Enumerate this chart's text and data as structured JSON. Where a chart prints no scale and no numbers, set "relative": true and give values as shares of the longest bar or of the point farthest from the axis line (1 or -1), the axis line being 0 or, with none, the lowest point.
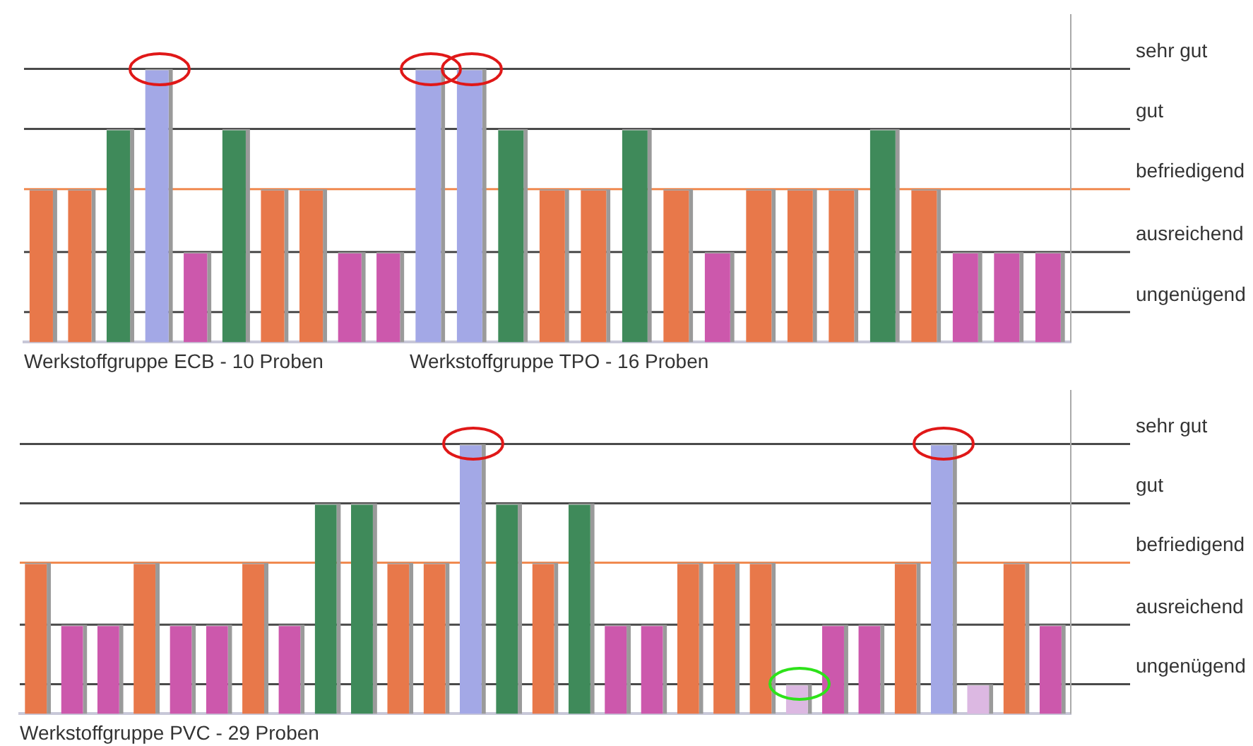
{
  "chart_data": [
    {
      "type": "bar",
      "xlabel": "Werkstoffgruppe ECB - 10 Proben",
      "categories": [
        null,
        null,
        null,
        null,
        null,
        null,
        null,
        null,
        null,
        null
      ],
      "relative": true,
      "values": [
        0.56,
        0.56,
        0.78,
        1,
        0.33,
        0.78,
        0.56,
        0.56,
        0.33,
        0.33
      ],
      "colors": [
        "#e8784a",
        "#e8784a",
        "#3f8a5a",
        "#a3a8e6",
        "#cc58ac",
        "#3f8a5a",
        "#e8784a",
        "#e8784a",
        "#cc58ac",
        "#cc58ac"
      ],
      "legend": false,
      "ref_lines": [
        {
          "axis": "y",
          "value": 0.11,
          "color": "#4a4a4a"
        },
        {
          "axis": "y",
          "value": 0.33,
          "color": "#4a4a4a"
        },
        {
          "axis": "y",
          "value": 0.56,
          "color": "#f08a50"
        },
        {
          "axis": "y",
          "value": 0.78,
          "color": "#4a4a4a"
        },
        {
          "axis": "y",
          "value": 1,
          "color": "#4a4a4a"
        }
      ]
    },
    {
      "type": "bar",
      "xlabel": "Werkstoffgruppe TPO - 16 Proben",
      "categories": [
        null,
        null,
        null,
        null,
        null,
        null,
        null,
        null,
        null,
        null,
        null,
        null,
        null,
        null,
        null,
        null
      ],
      "relative": true,
      "values": [
        1,
        1,
        0.78,
        0.56,
        0.56,
        0.78,
        0.56,
        0.33,
        0.56,
        0.56,
        0.56,
        0.78,
        0.56,
        0.33,
        0.33,
        0.33
      ],
      "colors": [
        "#a3a8e6",
        "#a3a8e6",
        "#3f8a5a",
        "#e8784a",
        "#e8784a",
        "#3f8a5a",
        "#e8784a",
        "#cc58ac",
        "#e8784a",
        "#e8784a",
        "#e8784a",
        "#3f8a5a",
        "#e8784a",
        "#cc58ac",
        "#cc58ac",
        "#cc58ac"
      ],
      "legend": false,
      "ref_lines": [
        {
          "axis": "y",
          "value": 0.11,
          "label": "ungenügend",
          "color": "#4a4a4a"
        },
        {
          "axis": "y",
          "value": 0.33,
          "label": "ausreichend",
          "color": "#4a4a4a"
        },
        {
          "axis": "y",
          "value": 0.56,
          "label": "befriedigend",
          "color": "#f08a50"
        },
        {
          "axis": "y",
          "value": 0.78,
          "label": "gut",
          "color": "#4a4a4a"
        },
        {
          "axis": "y",
          "value": 1,
          "label": "sehr gut",
          "color": "#4a4a4a"
        }
      ]
    },
    {
      "type": "bar",
      "xlabel": "Werkstoffgruppe PVC - 29 Proben",
      "categories": [
        null,
        null,
        null,
        null,
        null,
        null,
        null,
        null,
        null,
        null,
        null,
        null,
        null,
        null,
        null,
        null,
        null,
        null,
        null,
        null,
        null,
        null,
        null,
        null,
        null,
        null,
        null,
        null,
        null
      ],
      "relative": true,
      "values": [
        0.56,
        0.33,
        0.33,
        0.56,
        0.33,
        0.33,
        0.56,
        0.33,
        0.78,
        0.78,
        0.56,
        0.56,
        1,
        0.78,
        0.56,
        0.78,
        0.33,
        0.33,
        0.56,
        0.56,
        0.56,
        0.11,
        0.33,
        0.33,
        0.56,
        1,
        0.11,
        0.56,
        0.33
      ],
      "colors": [
        "#e8784a",
        "#cc58ac",
        "#cc58ac",
        "#e8784a",
        "#cc58ac",
        "#cc58ac",
        "#e8784a",
        "#cc58ac",
        "#3f8a5a",
        "#3f8a5a",
        "#e8784a",
        "#e8784a",
        "#a3a8e6",
        "#3f8a5a",
        "#e8784a",
        "#3f8a5a",
        "#cc58ac",
        "#cc58ac",
        "#e8784a",
        "#e8784a",
        "#e8784a",
        "#dcb8e2",
        "#cc58ac",
        "#cc58ac",
        "#e8784a",
        "#a3a8e6",
        "#dcb8e2",
        "#e8784a",
        "#cc58ac"
      ],
      "legend": false,
      "ref_lines": [
        {
          "axis": "y",
          "value": 0.11,
          "label": "ungenügend",
          "color": "#4a4a4a"
        },
        {
          "axis": "y",
          "value": 0.33,
          "label": "ausreichend",
          "color": "#4a4a4a"
        },
        {
          "axis": "y",
          "value": 0.56,
          "label": "befriedigend",
          "color": "#f08a50"
        },
        {
          "axis": "y",
          "value": 0.78,
          "label": "gut",
          "color": "#4a4a4a"
        },
        {
          "axis": "y",
          "value": 1,
          "label": "sehr gut",
          "color": "#4a4a4a"
        }
      ]
    }
  ]
}
